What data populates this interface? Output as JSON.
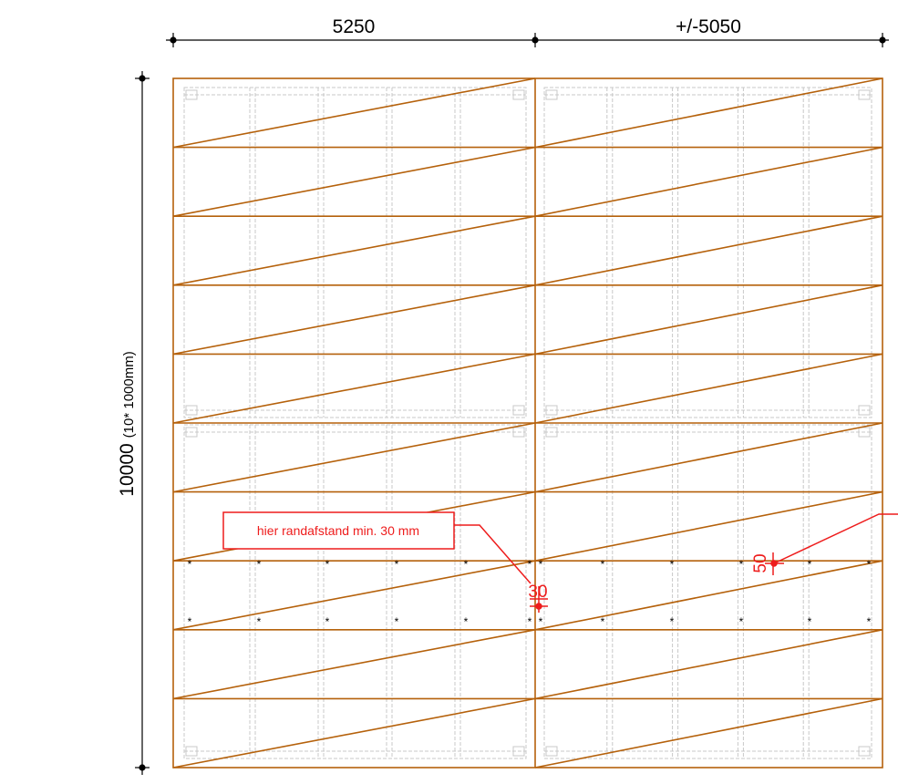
{
  "dimensions": {
    "top_left": "5250",
    "top_right": "+/-5050",
    "left_main": "10000",
    "left_sub": "(10* 1000mm)"
  },
  "annotations": {
    "callout_text": "hier randafstand min. 30 mm",
    "edge_30": "30",
    "edge_50": "50"
  },
  "colors": {
    "timber": "#b5610b",
    "annotation": "#ee1c1c",
    "dimension": "#000000",
    "underlay": "#c8c8c8"
  },
  "grid": {
    "horizontal_panels": 10,
    "vertical_panels": 2
  }
}
